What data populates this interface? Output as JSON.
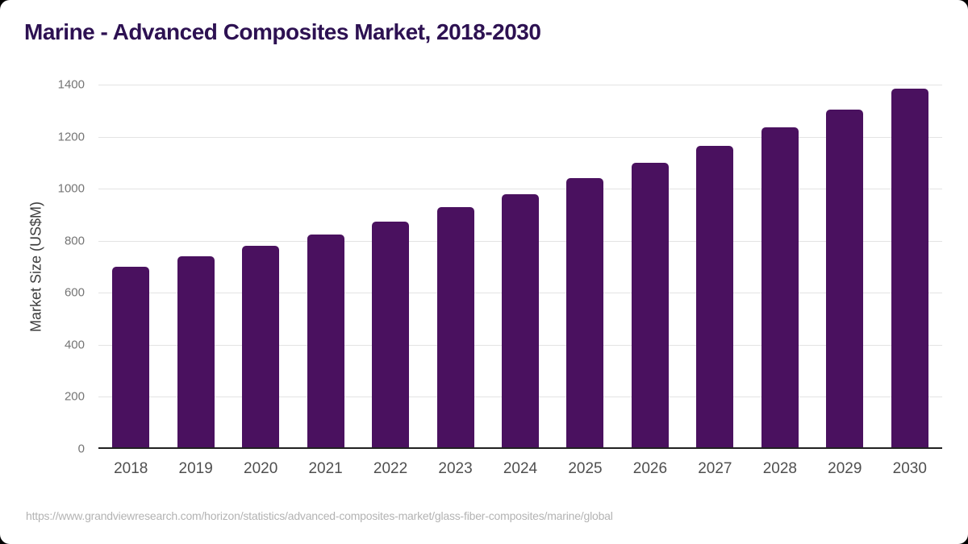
{
  "header": {
    "title": "Marine - Advanced Composites Market, 2018-2030",
    "title_color": "#2d1152"
  },
  "footer": {
    "source_url": "https://www.grandviewresearch.com/horizon/statistics/advanced-composites-market/glass-fiber-composites/marine/global"
  },
  "chart_data": {
    "type": "bar",
    "title": "Marine - Advanced Composites Market, 2018-2030",
    "categories": [
      "2018",
      "2019",
      "2020",
      "2021",
      "2022",
      "2023",
      "2024",
      "2025",
      "2026",
      "2027",
      "2028",
      "2029",
      "2030"
    ],
    "values": [
      700,
      740,
      780,
      825,
      875,
      930,
      980,
      1040,
      1100,
      1165,
      1235,
      1305,
      1385
    ],
    "xlabel": "",
    "ylabel": "Market Size (US$M)",
    "ylim": [
      0,
      1400
    ],
    "yticks": [
      0,
      200,
      400,
      600,
      800,
      1000,
      1200,
      1400
    ],
    "grid": "horizontal",
    "legend": "none",
    "bar_color": "#4a115f",
    "grid_color": "#e3e3e3",
    "axis_color": "#212121",
    "ytick_color": "#757575",
    "xtick_color": "#4f4f4f"
  }
}
